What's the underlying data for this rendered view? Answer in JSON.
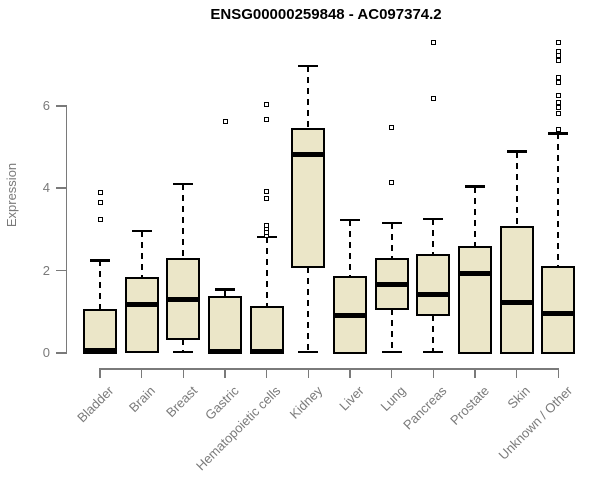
{
  "colors": {
    "box_fill": "#EBE6C8",
    "box_border": "#000000",
    "median": "#000000",
    "whisker": "#000000",
    "axis": "#7A7A7A",
    "label_text": "#7A7A7A",
    "title_text": "#000000",
    "background": "#FFFFFF"
  },
  "chart_data": {
    "type": "boxplot",
    "title": "ENSG00000259848 - AC097374.2",
    "ylabel": "Expression",
    "xlabel": "",
    "yticks": [
      0,
      2,
      4,
      6
    ],
    "ylim": [
      0,
      7.7
    ],
    "grid": false,
    "legend": null,
    "categories": [
      "Bladder",
      "Brain",
      "Breast",
      "Gastric",
      "Hematopoietic cells",
      "Kidney",
      "Liver",
      "Lung",
      "Pancreas",
      "Prostate",
      "Skin",
      "Unknown / Other"
    ],
    "series": [
      {
        "name": "Bladder",
        "q1": 0,
        "median": 0.05,
        "q3": 1.05,
        "whisker_low": null,
        "whisker_high": 2.25,
        "outliers": [
          3.23,
          3.65,
          3.9
        ]
      },
      {
        "name": "Brain",
        "q1": 0.02,
        "median": 1.17,
        "q3": 1.82,
        "whisker_low": null,
        "whisker_high": 2.96,
        "outliers": []
      },
      {
        "name": "Breast",
        "q1": 0.33,
        "median": 1.31,
        "q3": 2.27,
        "whisker_low": 0.03,
        "whisker_high": 4.1,
        "outliers": []
      },
      {
        "name": "Gastric",
        "q1": 0,
        "median": 0.04,
        "q3": 1.36,
        "whisker_low": null,
        "whisker_high": 1.54,
        "outliers": [
          5.61
        ]
      },
      {
        "name": "Hematopoietic cells",
        "q1": 0,
        "median": 0.04,
        "q3": 1.11,
        "whisker_low": null,
        "whisker_high": 2.82,
        "outliers": [
          2.85,
          2.93,
          3.01,
          3.09,
          3.74,
          3.93,
          5.67,
          6.02
        ]
      },
      {
        "name": "Kidney",
        "q1": 2.08,
        "median": 4.83,
        "q3": 5.43,
        "whisker_low": 0.02,
        "whisker_high": 6.97,
        "outliers": []
      },
      {
        "name": "Liver",
        "q1": 0.01,
        "median": 0.92,
        "q3": 1.85,
        "whisker_low": null,
        "whisker_high": 3.23,
        "outliers": []
      },
      {
        "name": "Lung",
        "q1": 1.06,
        "median": 1.67,
        "q3": 2.27,
        "whisker_low": 0.02,
        "whisker_high": 3.16,
        "outliers": [
          4.13,
          5.48
        ]
      },
      {
        "name": "Pancreas",
        "q1": 0.92,
        "median": 1.41,
        "q3": 2.38,
        "whisker_low": 0.02,
        "whisker_high": 3.25,
        "outliers": [
          6.18,
          7.53
        ]
      },
      {
        "name": "Prostate",
        "q1": 0,
        "median": 1.94,
        "q3": 2.57,
        "whisker_low": null,
        "whisker_high": 4.04,
        "outliers": []
      },
      {
        "name": "Skin",
        "q1": 0,
        "median": 1.22,
        "q3": 3.07,
        "whisker_low": null,
        "whisker_high": 4.89,
        "outliers": []
      },
      {
        "name": "Unknown / Other",
        "q1": 0,
        "median": 0.95,
        "q3": 2.09,
        "whisker_low": null,
        "whisker_high": 5.33,
        "outliers": [
          5.43,
          5.82,
          5.95,
          6.07,
          6.24,
          6.56,
          6.69,
          7.09,
          7.21,
          7.31,
          7.53
        ]
      }
    ]
  }
}
